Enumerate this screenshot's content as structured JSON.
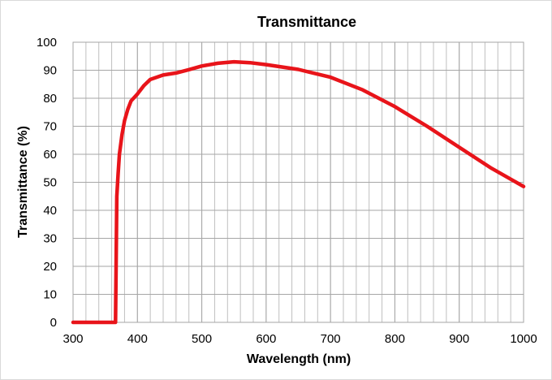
{
  "chart_data": {
    "type": "line",
    "title": "Transmittance",
    "xlabel": "Wavelength (nm)",
    "ylabel": "Transmittance (%)",
    "xlim": [
      300,
      1000
    ],
    "ylim": [
      0,
      100
    ],
    "xticks": [
      300,
      400,
      500,
      600,
      700,
      800,
      900,
      1000
    ],
    "yticks": [
      0,
      10,
      20,
      30,
      40,
      50,
      60,
      70,
      80,
      90,
      100
    ],
    "x_minor_grid_step": 20,
    "grid": true,
    "legend": "none",
    "series": [
      {
        "color": "#e8141a",
        "x": [
          300,
          340,
          366,
          368,
          370,
          372,
          376,
          380,
          385,
          390,
          400,
          410,
          420,
          440,
          460,
          480,
          500,
          525,
          550,
          575,
          600,
          650,
          700,
          750,
          800,
          850,
          900,
          950,
          1000
        ],
        "y": [
          0,
          0,
          0,
          45,
          53,
          60,
          67,
          72,
          76,
          79,
          81.5,
          84.5,
          86.7,
          88.3,
          89,
          90.2,
          91.5,
          92.5,
          93,
          92.7,
          92,
          90.3,
          87.5,
          83,
          77,
          70,
          62.5,
          55,
          48.5
        ]
      }
    ]
  }
}
